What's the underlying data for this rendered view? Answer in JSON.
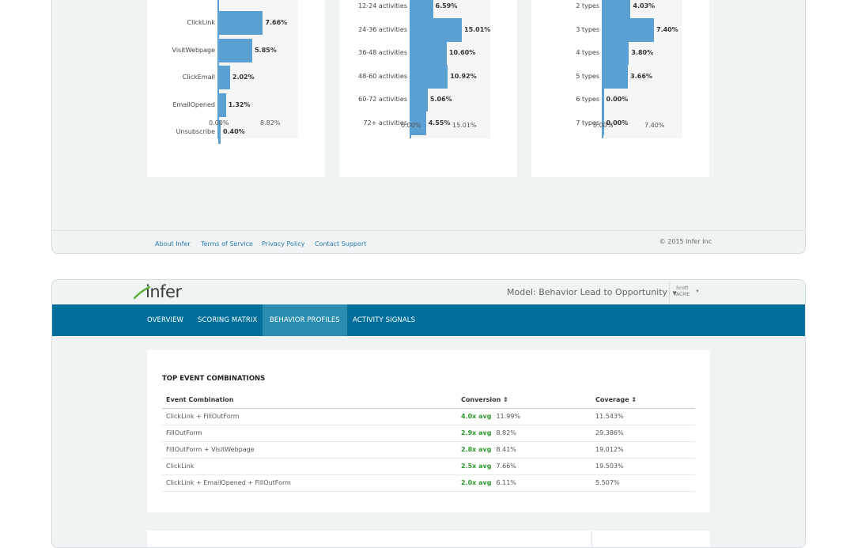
{
  "charts": {
    "card1": {
      "bars": [
        {
          "label": "ClickLink",
          "value": 7.66,
          "value_label": "7.66%"
        },
        {
          "label": "VisitWebpage",
          "value": 5.85,
          "value_label": "5.85%"
        },
        {
          "label": "ClickEmail",
          "value": 2.02,
          "value_label": "2.02%"
        },
        {
          "label": "EmailOpened",
          "value": 1.32,
          "value_label": "1.32%"
        },
        {
          "label": "Unsubscribe",
          "value": 0.4,
          "value_label": "0.40%"
        }
      ],
      "xmin_label": "0.00%",
      "xmax_label": "8.82%",
      "xmax": 8.82
    },
    "card2": {
      "bars": [
        {
          "label": "12-24 activities",
          "value": 6.59,
          "value_label": "6.59%"
        },
        {
          "label": "24-36 activities",
          "value": 15.01,
          "value_label": "15.01%"
        },
        {
          "label": "36-48 activities",
          "value": 10.6,
          "value_label": "10.60%"
        },
        {
          "label": "48-60 activities",
          "value": 10.92,
          "value_label": "10.92%"
        },
        {
          "label": "60-72 activities",
          "value": 5.06,
          "value_label": "5.06%"
        },
        {
          "label": "72+ activities",
          "value": 4.55,
          "value_label": "4.55%"
        }
      ],
      "xmin_label": "0.00%",
      "xmax_label": "15.01%",
      "xmax": 15.01
    },
    "card3": {
      "bars": [
        {
          "label": "2 types",
          "value": 4.03,
          "value_label": "4.03%"
        },
        {
          "label": "3 types",
          "value": 7.4,
          "value_label": "7.40%"
        },
        {
          "label": "4 types",
          "value": 3.8,
          "value_label": "3.80%"
        },
        {
          "label": "5 types",
          "value": 3.66,
          "value_label": "3.66%"
        },
        {
          "label": "6 types",
          "value": 0.0,
          "value_label": "0.00%"
        },
        {
          "label": "7 types",
          "value": 0.0,
          "value_label": "0.00%"
        }
      ],
      "xmin_label": "0.00%",
      "xmax_label": "7.40%",
      "xmax": 7.4
    },
    "bar_color": "#5aa0d2"
  },
  "footer": {
    "links": [
      "About Infer",
      "Terms of Service",
      "Privacy Policy",
      "Contact Support"
    ],
    "copyright": "© 2015 Infer Inc"
  },
  "header": {
    "logo": "infer",
    "model_selector": "Model: Behavior Lead to Opportunity",
    "user_name": "Scott",
    "user_org": "ACME"
  },
  "nav": {
    "tabs": [
      "OVERVIEW",
      "SCORING MATRIX",
      "BEHAVIOR PROFILES",
      "ACTIVITY SIGNALS"
    ],
    "active": "BEHAVIOR PROFILES",
    "bar_color": "#006f99"
  },
  "top_events": {
    "title": "TOP EVENT COMBINATIONS",
    "columns": [
      "Event Combination",
      "Conversion",
      "Coverage"
    ],
    "rows": [
      {
        "combination": "ClickLink + FillOutForm",
        "avg": "4.0x avg",
        "conversion": "11.99%",
        "coverage": "11.543%"
      },
      {
        "combination": "FillOutForm",
        "avg": "2.9x avg",
        "conversion": "8.82%",
        "coverage": "29.386%"
      },
      {
        "combination": "FillOutForm + VisitWebpage",
        "avg": "2.8x avg",
        "conversion": "8.41%",
        "coverage": "19.012%"
      },
      {
        "combination": "ClickLink",
        "avg": "2.5x avg",
        "conversion": "7.66%",
        "coverage": "19.503%"
      },
      {
        "combination": "ClickLink + EmailOpened + FillOutForm",
        "avg": "2.0x avg",
        "conversion": "6.11%",
        "coverage": "5.507%"
      }
    ],
    "avg_color": "#2e9b2e"
  }
}
